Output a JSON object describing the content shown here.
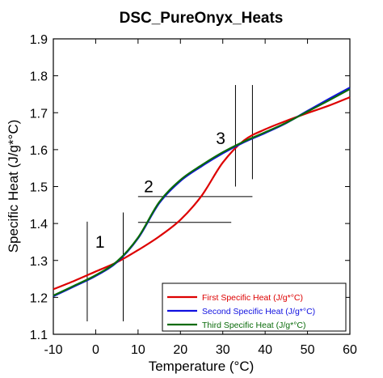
{
  "chart_data": {
    "type": "line",
    "title": "DSC_PureOnyx_Heats",
    "xlabel": "Temperature (°C)",
    "ylabel": "Specific Heat (J/g*°C)",
    "xlim": [
      -10,
      60
    ],
    "ylim": [
      1.1,
      1.9
    ],
    "xticks": [
      -10,
      0,
      10,
      20,
      30,
      40,
      50,
      60
    ],
    "yticks": [
      1.1,
      1.2,
      1.3,
      1.4,
      1.5,
      1.6,
      1.7,
      1.8,
      1.9
    ],
    "xtick_labels": [
      "-10",
      "0",
      "10",
      "20",
      "30",
      "40",
      "50",
      "60"
    ],
    "ytick_labels": [
      "1.1",
      "1.2",
      "1.3",
      "1.4",
      "1.5",
      "1.6",
      "1.7",
      "1.8",
      "1.9"
    ],
    "grid": false,
    "legend_position": "bottom-right",
    "series": [
      {
        "name": "First Specific Heat (J/g*°C)",
        "color": "#dd0000",
        "x": [
          -10,
          -5,
          0,
          5,
          10,
          15,
          20,
          25,
          30,
          35,
          40,
          45,
          50,
          55,
          60
        ],
        "y": [
          1.222,
          1.245,
          1.27,
          1.295,
          1.328,
          1.365,
          1.41,
          1.475,
          1.565,
          1.625,
          1.655,
          1.678,
          1.699,
          1.719,
          1.742
        ]
      },
      {
        "name": "Second Specific Heat (J/g*°C)",
        "color": "#1010e0",
        "x": [
          -10,
          -5,
          0,
          5,
          10,
          15,
          20,
          25,
          30,
          35,
          40,
          45,
          50,
          55,
          60
        ],
        "y": [
          1.203,
          1.23,
          1.258,
          1.295,
          1.36,
          1.455,
          1.515,
          1.555,
          1.59,
          1.62,
          1.645,
          1.672,
          1.705,
          1.737,
          1.768
        ]
      },
      {
        "name": "Third Specific Heat (J/g*°C)",
        "color": "#0a6b0a",
        "x": [
          -10,
          -5,
          0,
          5,
          10,
          15,
          20,
          25,
          30,
          35,
          40,
          45,
          50,
          55,
          60
        ],
        "y": [
          1.205,
          1.232,
          1.26,
          1.297,
          1.362,
          1.458,
          1.518,
          1.558,
          1.593,
          1.622,
          1.647,
          1.673,
          1.703,
          1.733,
          1.764
        ]
      }
    ],
    "annotations": [
      {
        "label": "1",
        "x": 1,
        "y": 1.335
      },
      {
        "label": "2",
        "x": 12.5,
        "y": 1.485
      },
      {
        "label": "3",
        "x": 29.5,
        "y": 1.615
      }
    ],
    "reference_lines": [
      {
        "orientation": "vertical",
        "x": -2,
        "y1": 1.135,
        "y2": 1.405
      },
      {
        "orientation": "vertical",
        "x": 6.5,
        "y1": 1.135,
        "y2": 1.43
      },
      {
        "orientation": "horizontal",
        "y": 1.403,
        "x1": 10,
        "x2": 32
      },
      {
        "orientation": "horizontal",
        "y": 1.473,
        "x1": 10,
        "x2": 37
      },
      {
        "orientation": "vertical",
        "x": 33,
        "y1": 1.5,
        "y2": 1.775
      },
      {
        "orientation": "vertical",
        "x": 37,
        "y1": 1.52,
        "y2": 1.775
      }
    ]
  }
}
